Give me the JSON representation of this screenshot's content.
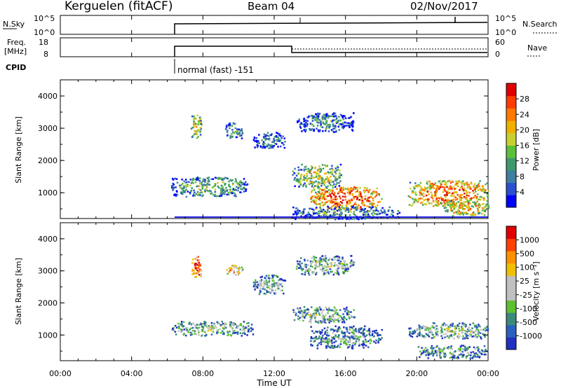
{
  "header": {
    "station": "Kerguelen (fitACF)",
    "beam": "Beam 04",
    "date": "02/Nov/2017"
  },
  "sky_panel": {
    "left_label": "N.Sky",
    "right_label": "N.Search",
    "left_ticks": [
      "10^5",
      "10^0"
    ],
    "right_ticks": [
      "10^5",
      "10^0"
    ]
  },
  "freq_panel": {
    "left_label_line1": "Freq.",
    "left_label_line2": "[MHz]",
    "right_label": "Nave",
    "left_ticks": [
      "18",
      "8"
    ],
    "right_ticks": [
      "60",
      "0"
    ]
  },
  "cpid": {
    "label": "CPID",
    "mode_text": "normal (fast) -151"
  },
  "chart_data": [
    {
      "type": "heatmap",
      "name": "power",
      "ylabel": "Slant Range [km]",
      "yticks": [
        "4000",
        "3000",
        "2000",
        "1000"
      ],
      "ylim": [
        200,
        4500
      ],
      "colorbar_label": "Power [dB]",
      "colorbar_ticks": [
        "28",
        "24",
        "20",
        "16",
        "12",
        "8",
        "4"
      ],
      "colorbar_colors": [
        "#0000ff",
        "#2a4fd0",
        "#3f7fa0",
        "#3e9a6a",
        "#5bbf3a",
        "#c8d030",
        "#f0b000",
        "#ff7800",
        "#ff3c00",
        "#e00000"
      ],
      "xlim_hours": [
        0,
        24
      ],
      "regions": [
        {
          "t0": 7.3,
          "t1": 7.9,
          "r0": 2700,
          "r1": 3500,
          "v": 0.6
        },
        {
          "t0": 9.2,
          "t1": 10.2,
          "r0": 2700,
          "r1": 3200,
          "v": 0.4
        },
        {
          "t0": 10.8,
          "t1": 12.6,
          "r0": 2400,
          "r1": 2900,
          "v": 0.3
        },
        {
          "t0": 6.2,
          "t1": 10.5,
          "r0": 900,
          "r1": 1500,
          "v": 0.45
        },
        {
          "t0": 13.0,
          "t1": 15.8,
          "r0": 1200,
          "r1": 1900,
          "v": 0.55
        },
        {
          "t0": 13.2,
          "t1": 16.5,
          "r0": 2900,
          "r1": 3500,
          "v": 0.3
        },
        {
          "t0": 14.0,
          "t1": 18.0,
          "r0": 500,
          "r1": 1200,
          "v": 0.85
        },
        {
          "t0": 13.0,
          "t1": 19.0,
          "r0": 200,
          "r1": 600,
          "v": 0.35
        },
        {
          "t0": 19.5,
          "t1": 24.0,
          "r0": 600,
          "r1": 1400,
          "v": 0.8
        },
        {
          "t0": 21.5,
          "t1": 24.0,
          "r0": 300,
          "r1": 800,
          "v": 0.7
        }
      ]
    },
    {
      "type": "heatmap",
      "name": "velocity",
      "ylabel": "Slant Range [km]",
      "yticks": [
        "4000",
        "3000",
        "2000",
        "1000"
      ],
      "ylim": [
        200,
        4500
      ],
      "colorbar_label": "Velocity [m s⁻¹]",
      "colorbar_ticks": [
        "1000",
        "500",
        "100",
        "25",
        "-25",
        "-100",
        "-500",
        "-1000"
      ],
      "colorbar_colors": [
        "#2030c0",
        "#2a60c0",
        "#3a8a7a",
        "#5cc030",
        "#c0c0c0",
        "#c0c0c0",
        "#f0c000",
        "#ff9000",
        "#ff4000",
        "#e00000"
      ],
      "xlim_hours": [
        0,
        24
      ],
      "xticks": [
        "00:00",
        "04:00",
        "08:00",
        "12:00",
        "16:00",
        "20:00",
        "00:00"
      ],
      "xlabel": "Time UT",
      "regions": [
        {
          "t0": 7.3,
          "t1": 7.9,
          "r0": 2800,
          "r1": 3500,
          "v": 0.85
        },
        {
          "t0": 9.3,
          "t1": 10.2,
          "r0": 2900,
          "r1": 3200,
          "v": 0.7
        },
        {
          "t0": 10.8,
          "t1": 12.6,
          "r0": 2300,
          "r1": 2900,
          "v": 0.45
        },
        {
          "t0": 6.2,
          "t1": 10.8,
          "r0": 1000,
          "r1": 1450,
          "v": 0.45
        },
        {
          "t0": 13.0,
          "t1": 16.5,
          "r0": 1400,
          "r1": 1900,
          "v": 0.45
        },
        {
          "t0": 14.0,
          "t1": 18.0,
          "r0": 600,
          "r1": 1300,
          "v": 0.3
        },
        {
          "t0": 19.5,
          "t1": 24.0,
          "r0": 900,
          "r1": 1400,
          "v": 0.45
        },
        {
          "t0": 20.0,
          "t1": 24.0,
          "r0": 300,
          "r1": 700,
          "v": 0.35
        },
        {
          "t0": 13.2,
          "t1": 16.5,
          "r0": 2900,
          "r1": 3500,
          "v": 0.45
        }
      ]
    }
  ]
}
